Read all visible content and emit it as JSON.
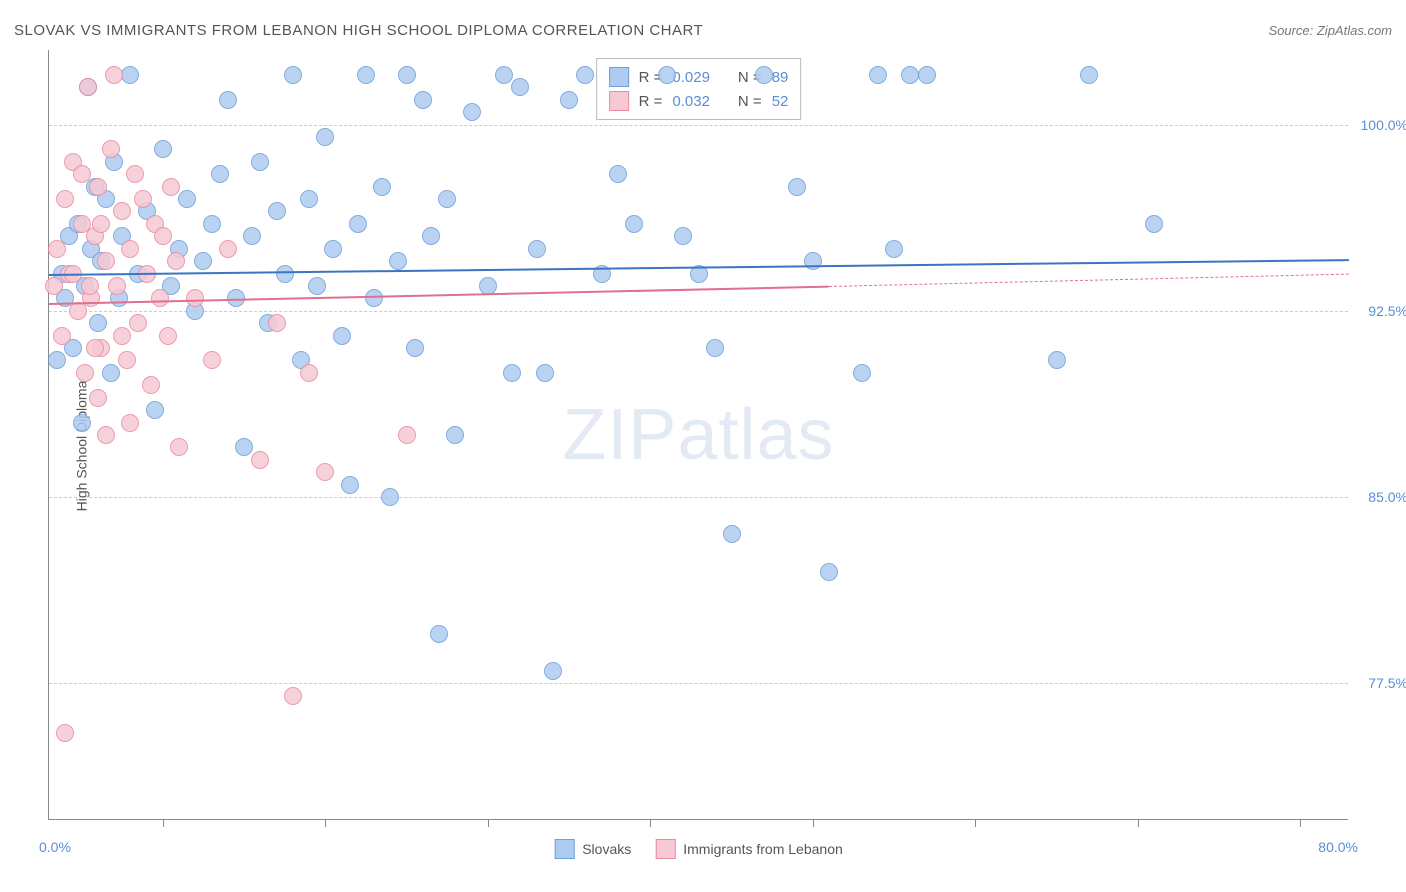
{
  "title": "SLOVAK VS IMMIGRANTS FROM LEBANON HIGH SCHOOL DIPLOMA CORRELATION CHART",
  "source": "Source: ZipAtlas.com",
  "y_axis_title": "High School Diploma",
  "watermark": {
    "part1": "ZIP",
    "part2": "atlas"
  },
  "chart": {
    "type": "scatter",
    "xlim": [
      0,
      80
    ],
    "ylim": [
      72,
      103
    ],
    "x_start_label": "0.0%",
    "x_end_label": "80.0%",
    "x_tick_positions": [
      7,
      17,
      27,
      37,
      47,
      57,
      67,
      77
    ],
    "y_gridlines": [
      77.5,
      85.0,
      92.5,
      100.0
    ],
    "y_tick_labels": [
      "77.5%",
      "85.0%",
      "92.5%",
      "100.0%"
    ],
    "background_color": "#ffffff",
    "grid_color": "#cccccc",
    "point_radius": 9,
    "point_stroke_width": 1.5,
    "point_fill_opacity": 0.35
  },
  "series": [
    {
      "name": "Slovaks",
      "color_fill": "#aeccf0",
      "color_stroke": "#6f9fd8",
      "line_color": "#3b74c4",
      "R": "0.029",
      "N": "89",
      "trend": {
        "x1": 0,
        "y1": 94.0,
        "x2": 80,
        "y2": 94.6
      },
      "points": [
        [
          0.5,
          90.5
        ],
        [
          0.8,
          94.0
        ],
        [
          1.0,
          93.0
        ],
        [
          1.2,
          95.5
        ],
        [
          1.5,
          91.0
        ],
        [
          1.8,
          96.0
        ],
        [
          2.0,
          88.0
        ],
        [
          2.2,
          93.5
        ],
        [
          2.4,
          101.5
        ],
        [
          2.6,
          95.0
        ],
        [
          2.8,
          97.5
        ],
        [
          3.0,
          92.0
        ],
        [
          3.2,
          94.5
        ],
        [
          3.5,
          97.0
        ],
        [
          3.8,
          90.0
        ],
        [
          4.0,
          98.5
        ],
        [
          4.3,
          93.0
        ],
        [
          4.5,
          95.5
        ],
        [
          5.0,
          102.0
        ],
        [
          5.5,
          94.0
        ],
        [
          6.0,
          96.5
        ],
        [
          6.5,
          88.5
        ],
        [
          7.0,
          99.0
        ],
        [
          7.5,
          93.5
        ],
        [
          8.0,
          95.0
        ],
        [
          8.5,
          97.0
        ],
        [
          9.0,
          92.5
        ],
        [
          9.5,
          94.5
        ],
        [
          10.0,
          96.0
        ],
        [
          10.5,
          98.0
        ],
        [
          11.0,
          101.0
        ],
        [
          11.5,
          93.0
        ],
        [
          12.0,
          87.0
        ],
        [
          12.5,
          95.5
        ],
        [
          13.0,
          98.5
        ],
        [
          13.5,
          92.0
        ],
        [
          14.0,
          96.5
        ],
        [
          14.5,
          94.0
        ],
        [
          15.0,
          102.0
        ],
        [
          15.5,
          90.5
        ],
        [
          16.0,
          97.0
        ],
        [
          16.5,
          93.5
        ],
        [
          17.0,
          99.5
        ],
        [
          17.5,
          95.0
        ],
        [
          18.0,
          91.5
        ],
        [
          18.5,
          85.5
        ],
        [
          19.0,
          96.0
        ],
        [
          19.5,
          102.0
        ],
        [
          20.0,
          93.0
        ],
        [
          20.5,
          97.5
        ],
        [
          21.0,
          85.0
        ],
        [
          21.5,
          94.5
        ],
        [
          22.0,
          102.0
        ],
        [
          22.5,
          91.0
        ],
        [
          23.0,
          101.0
        ],
        [
          23.5,
          95.5
        ],
        [
          24.0,
          79.5
        ],
        [
          24.5,
          97.0
        ],
        [
          25.0,
          87.5
        ],
        [
          26.0,
          100.5
        ],
        [
          27.0,
          93.5
        ],
        [
          28.0,
          102.0
        ],
        [
          28.5,
          90.0
        ],
        [
          29.0,
          101.5
        ],
        [
          30.0,
          95.0
        ],
        [
          30.5,
          90.0
        ],
        [
          31.0,
          78.0
        ],
        [
          32.0,
          101.0
        ],
        [
          33.0,
          102.0
        ],
        [
          34.0,
          94.0
        ],
        [
          35.0,
          98.0
        ],
        [
          36.0,
          96.0
        ],
        [
          38.0,
          102.0
        ],
        [
          39.0,
          95.5
        ],
        [
          40.0,
          94.0
        ],
        [
          41.0,
          91.0
        ],
        [
          42.0,
          83.5
        ],
        [
          44.0,
          102.0
        ],
        [
          46.0,
          97.5
        ],
        [
          47.0,
          94.5
        ],
        [
          48.0,
          82.0
        ],
        [
          50.0,
          90.0
        ],
        [
          51.0,
          102.0
        ],
        [
          52.0,
          95.0
        ],
        [
          53.0,
          102.0
        ],
        [
          54.0,
          102.0
        ],
        [
          62.0,
          90.5
        ],
        [
          64.0,
          102.0
        ],
        [
          68.0,
          96.0
        ]
      ]
    },
    {
      "name": "Immigrants from Lebanon",
      "color_fill": "#f6c9d4",
      "color_stroke": "#e88ba3",
      "line_color": "#e36f8e",
      "R": "0.032",
      "N": "52",
      "trend": {
        "x1": 0,
        "y1": 92.8,
        "x2": 48,
        "y2": 93.5
      },
      "trend_dash": {
        "x1": 48,
        "y1": 93.5,
        "x2": 80,
        "y2": 94.0
      },
      "points": [
        [
          0.3,
          93.5
        ],
        [
          0.5,
          95.0
        ],
        [
          0.8,
          91.5
        ],
        [
          1.0,
          97.0
        ],
        [
          1.2,
          94.0
        ],
        [
          1.5,
          98.5
        ],
        [
          1.8,
          92.5
        ],
        [
          2.0,
          96.0
        ],
        [
          2.2,
          90.0
        ],
        [
          2.4,
          101.5
        ],
        [
          2.6,
          93.0
        ],
        [
          2.8,
          95.5
        ],
        [
          3.0,
          97.5
        ],
        [
          3.2,
          91.0
        ],
        [
          3.5,
          94.5
        ],
        [
          3.8,
          99.0
        ],
        [
          4.0,
          102.0
        ],
        [
          4.2,
          93.5
        ],
        [
          4.5,
          96.5
        ],
        [
          4.8,
          90.5
        ],
        [
          5.0,
          95.0
        ],
        [
          5.3,
          98.0
        ],
        [
          5.5,
          92.0
        ],
        [
          5.8,
          97.0
        ],
        [
          6.0,
          94.0
        ],
        [
          6.3,
          89.5
        ],
        [
          6.5,
          96.0
        ],
        [
          6.8,
          93.0
        ],
        [
          7.0,
          95.5
        ],
        [
          7.3,
          91.5
        ],
        [
          7.5,
          97.5
        ],
        [
          7.8,
          94.5
        ],
        [
          1.0,
          75.5
        ],
        [
          2.0,
          98.0
        ],
        [
          3.0,
          89.0
        ],
        [
          3.5,
          87.5
        ],
        [
          4.5,
          91.5
        ],
        [
          5.0,
          88.0
        ],
        [
          2.5,
          93.5
        ],
        [
          3.2,
          96.0
        ],
        [
          1.5,
          94.0
        ],
        [
          2.8,
          91.0
        ],
        [
          8.0,
          87.0
        ],
        [
          9.0,
          93.0
        ],
        [
          10.0,
          90.5
        ],
        [
          11.0,
          95.0
        ],
        [
          13.0,
          86.5
        ],
        [
          14.0,
          92.0
        ],
        [
          15.0,
          77.0
        ],
        [
          16.0,
          90.0
        ],
        [
          17.0,
          86.0
        ],
        [
          22.0,
          87.5
        ]
      ]
    }
  ],
  "stats_box": {
    "r_label": "R =",
    "n_label": "N ="
  },
  "legend": {
    "series1": "Slovaks",
    "series2": "Immigrants from Lebanon"
  }
}
